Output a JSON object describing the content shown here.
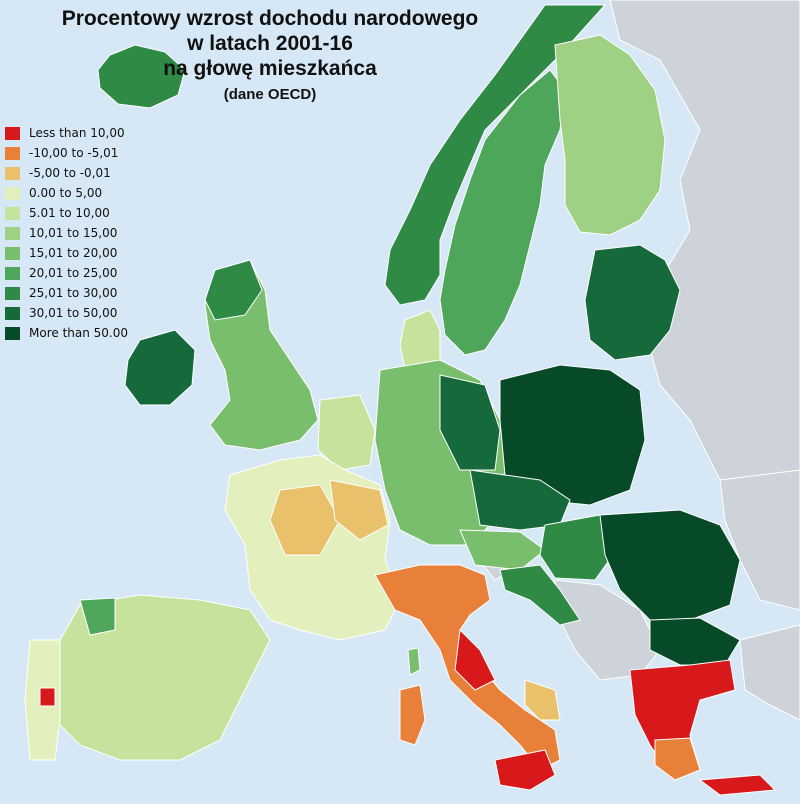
{
  "title": {
    "line1": "Procentowy wzrost dochodu narodowego",
    "line2": "w latach 2001-16",
    "line3": "na głowę mieszkańca",
    "source": "(dane OECD)"
  },
  "colors": {
    "sea": "#d6e8f5",
    "non_data_land": "#cdd3d9",
    "border": "#ffffff"
  },
  "legend": [
    {
      "label": "Less than  10,00",
      "color": "#d7191c"
    },
    {
      "label": "-10,00 to -5,01",
      "color": "#e8803a"
    },
    {
      "label": "-5,00 to -0,01",
      "color": "#e8c16a"
    },
    {
      "label": "0.00 to 5,00",
      "color": "#e4efbe"
    },
    {
      "label": "5.01 to 10,00",
      "color": "#c6e39e"
    },
    {
      "label": "10,01 to 15,00",
      "color": "#9fd184"
    },
    {
      "label": "15,01 to 20,00",
      "color": "#78be6c"
    },
    {
      "label": "20,01 to 25,00",
      "color": "#4ea65b"
    },
    {
      "label": "25,01 to 30,00",
      "color": "#2e8a45"
    },
    {
      "label": "30,01 to 50,00",
      "color": "#15693a"
    },
    {
      "label": "More than 50.00",
      "color": "#074a27"
    }
  ]
}
